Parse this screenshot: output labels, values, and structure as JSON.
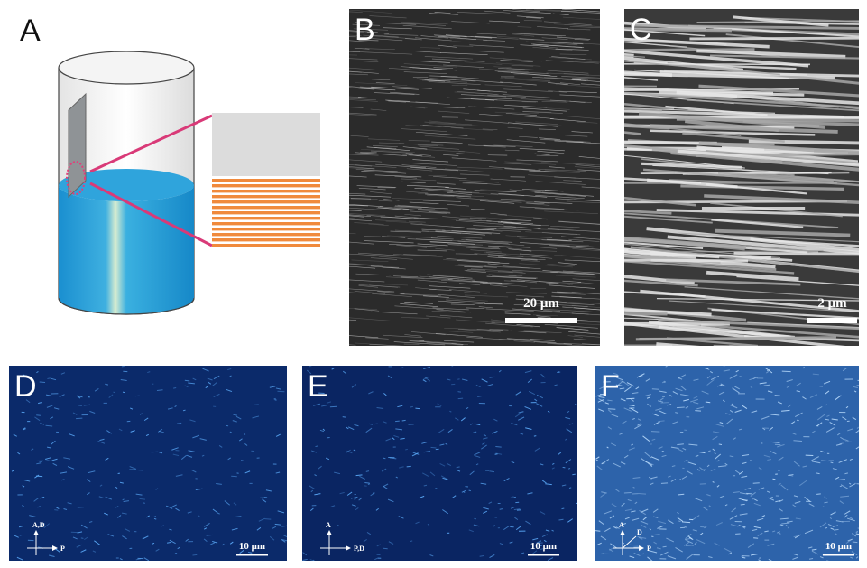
{
  "panels": [
    {
      "label": "A"
    },
    {
      "label": "B",
      "scale_bar": "20 μm"
    },
    {
      "label": "C",
      "scale_bar": "2 μm"
    },
    {
      "label": "D",
      "scale_bar": "10 μm",
      "axes": [
        "A,D",
        "P"
      ]
    },
    {
      "label": "E",
      "scale_bar": "10 μm",
      "axes": [
        "A",
        "P,D"
      ]
    },
    {
      "label": "F",
      "scale_bar": "10 μm",
      "axes": [
        "A",
        "D",
        "P"
      ]
    }
  ]
}
